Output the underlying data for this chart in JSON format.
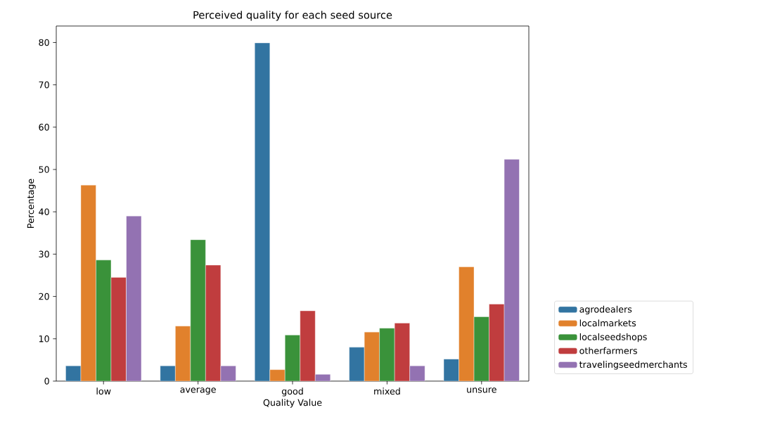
{
  "chart_data": {
    "type": "bar",
    "title": "Perceived quality for each seed source",
    "xlabel": "Quality Value",
    "ylabel": "Percentage",
    "categories": [
      "low",
      "average",
      "good",
      "mixed",
      "unsure"
    ],
    "series": [
      {
        "name": "agrodealers",
        "color": "#3274a1",
        "values": [
          3.6,
          3.6,
          79.9,
          8.0,
          5.2
        ]
      },
      {
        "name": "localmarkets",
        "color": "#e1812c",
        "values": [
          46.3,
          13.0,
          2.7,
          11.6,
          27.0
        ]
      },
      {
        "name": "localseedshops",
        "color": "#3a923a",
        "values": [
          28.6,
          33.4,
          10.9,
          12.5,
          15.2
        ]
      },
      {
        "name": "otherfarmers",
        "color": "#c03d3e",
        "values": [
          24.5,
          27.4,
          16.6,
          13.7,
          18.2
        ]
      },
      {
        "name": "travelingseedmerchants",
        "color": "#9372b2",
        "values": [
          39.0,
          3.6,
          1.6,
          3.6,
          52.4
        ]
      }
    ],
    "ylim": [
      0,
      83.9
    ],
    "yticks": [
      0,
      10,
      20,
      30,
      40,
      50,
      60,
      70,
      80
    ],
    "legend": "bottom right",
    "grid": false
  }
}
